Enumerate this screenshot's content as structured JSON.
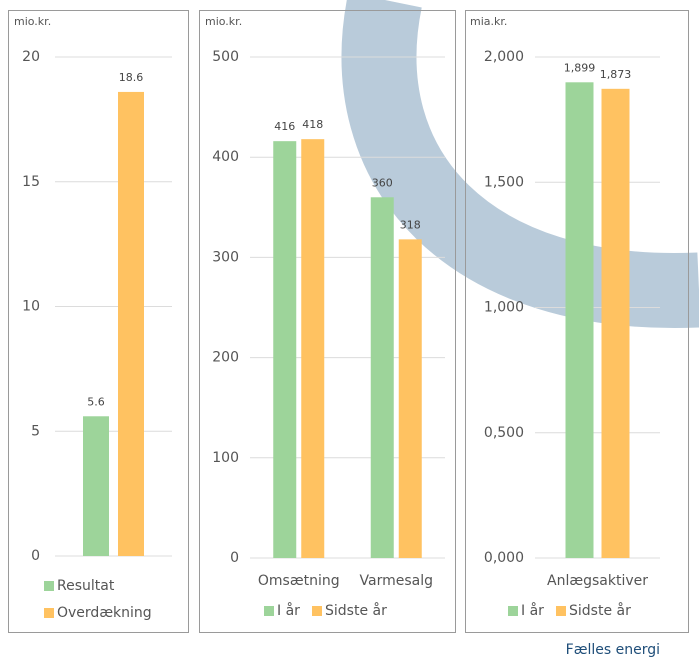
{
  "chart_data": [
    {
      "type": "bar",
      "unit": "mio.kr.",
      "categories": [
        null
      ],
      "series": [
        {
          "name": "Resultat",
          "color": "#9dd49a",
          "values": [
            5.6
          ]
        },
        {
          "name": "Overdækning",
          "color": "#ffc261",
          "values": [
            18.6
          ]
        }
      ],
      "ylim": [
        0,
        20
      ],
      "yticks": [
        0,
        5,
        10,
        15,
        20
      ],
      "grid": true
    },
    {
      "type": "bar",
      "unit": "mio.kr.",
      "categories": [
        "Omsætning",
        "Varmesalg"
      ],
      "series": [
        {
          "name": "I år",
          "color": "#9dd49a",
          "values": [
            416,
            360
          ]
        },
        {
          "name": "Sidste år",
          "color": "#ffc261",
          "values": [
            418,
            318
          ]
        }
      ],
      "ylim": [
        0,
        500
      ],
      "yticks": [
        0,
        100,
        200,
        300,
        400,
        500
      ],
      "grid": true
    },
    {
      "type": "bar",
      "unit": "mia.kr.",
      "categories": [
        "Anlægsaktiver"
      ],
      "series": [
        {
          "name": "I år",
          "color": "#9dd49a",
          "values": [
            1.899
          ],
          "value_labels": [
            "1,899"
          ]
        },
        {
          "name": "Sidste år",
          "color": "#ffc261",
          "values": [
            1.873
          ],
          "value_labels": [
            "1,873"
          ]
        }
      ],
      "ylim": [
        0,
        2
      ],
      "yticks": [
        {
          "value": 0,
          "label": "0,000"
        },
        {
          "value": 0.5,
          "label": "0,500"
        },
        {
          "value": 1,
          "label": "1,000"
        },
        {
          "value": 1.5,
          "label": "1,500"
        },
        {
          "value": 2,
          "label": "2,000"
        }
      ],
      "grid": true
    }
  ],
  "footer": "Fælles energi"
}
